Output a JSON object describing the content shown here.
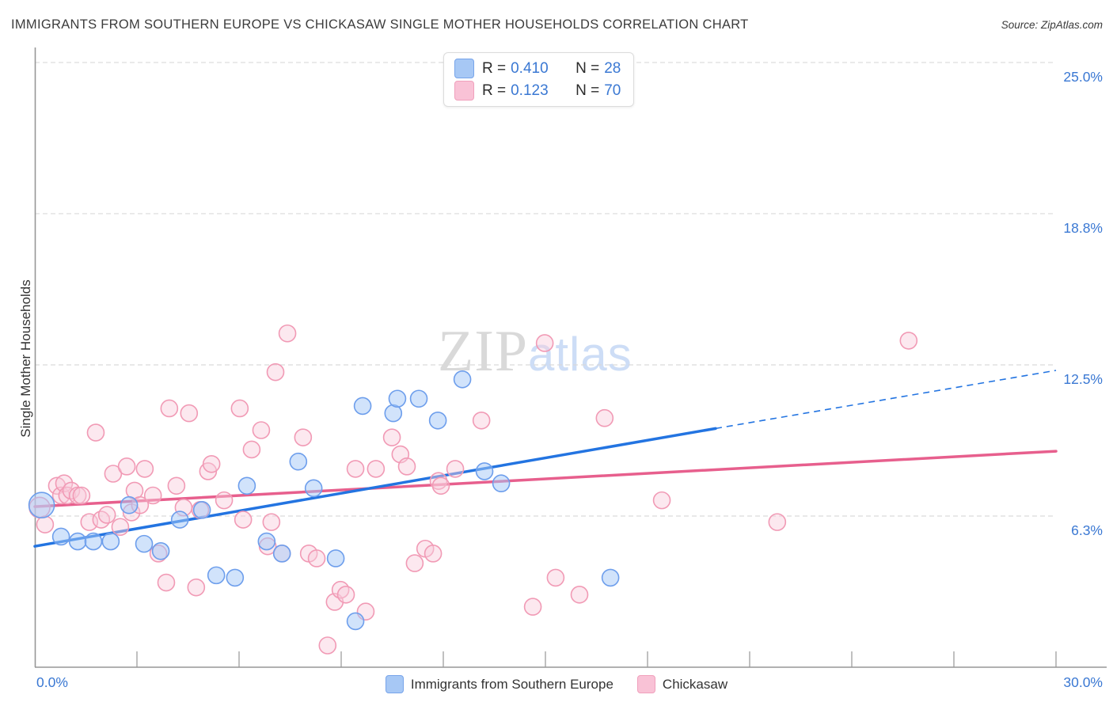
{
  "title": "IMMIGRANTS FROM SOUTHERN EUROPE VS CHICKASAW SINGLE MOTHER HOUSEHOLDS CORRELATION CHART",
  "source": "Source: ZipAtlas.com",
  "watermark": {
    "part1": "ZIP",
    "part2": "atlas"
  },
  "legend_box": {
    "rows": [
      {
        "r_label": "R =",
        "r_value": "0.410",
        "n_label": "N =",
        "n_value": "28",
        "swatch": "blue"
      },
      {
        "r_label": "R =",
        "r_value": "0.123",
        "n_label": "N =",
        "n_value": "70",
        "swatch": "pink"
      }
    ]
  },
  "y_axis": {
    "title": "Single Mother Households",
    "max": 25.62,
    "tick_values": [
      25.0,
      18.75,
      12.5,
      6.25
    ],
    "tick_labels": [
      "25.0%",
      "18.8%",
      "12.5%",
      "6.3%"
    ]
  },
  "x_axis": {
    "min": 0,
    "max": 30,
    "tick_step": 3,
    "min_label": "0.0%",
    "max_label": "30.0%"
  },
  "bottom_legend": [
    {
      "label": "Immigrants from Southern Europe",
      "swatch": "blue"
    },
    {
      "label": "Chickasaw",
      "swatch": "pink"
    }
  ],
  "colors": {
    "blue_fill": "rgba(164,199,247,0.5)",
    "blue_stroke": "#6d9eec",
    "blue_line": "#2374e1",
    "pink_fill": "rgba(249,203,220,0.45)",
    "pink_stroke": "#f19ab5",
    "pink_line": "#e75f8d",
    "axis": "#979797",
    "grid": "#d9d9d9",
    "tick_text": "#3a78d3"
  },
  "chart_data": {
    "type": "scatter",
    "x_unit": "% Immigrants from Southern Europe",
    "y_unit": "% Single Mother Households",
    "x_range": [
      0,
      30
    ],
    "y_range": [
      0,
      25.62
    ],
    "grid": "horizontal-dashed",
    "series": [
      {
        "name": "Chickasaw",
        "color_key": "pink",
        "r": 0.123,
        "n": 70,
        "trend": {
          "x0": 0,
          "y0": 6.64,
          "x1": 30,
          "y1": 8.93
        },
        "points": [
          [
            0.14,
            6.6,
            13
          ],
          [
            0.3,
            5.9
          ],
          [
            0.65,
            7.5
          ],
          [
            0.77,
            7.1
          ],
          [
            0.86,
            7.6
          ],
          [
            0.95,
            7.1
          ],
          [
            1.07,
            7.3
          ],
          [
            1.26,
            7.1
          ],
          [
            1.37,
            7.1
          ],
          [
            1.6,
            6.0
          ],
          [
            1.79,
            9.7
          ],
          [
            1.95,
            6.1
          ],
          [
            2.12,
            6.3
          ],
          [
            2.3,
            8.0
          ],
          [
            2.51,
            5.8
          ],
          [
            2.7,
            8.3
          ],
          [
            2.84,
            6.4
          ],
          [
            2.93,
            7.3
          ],
          [
            3.09,
            6.7
          ],
          [
            3.23,
            8.2
          ],
          [
            3.47,
            7.1
          ],
          [
            3.63,
            4.7
          ],
          [
            3.86,
            3.5
          ],
          [
            3.95,
            10.7
          ],
          [
            4.16,
            7.5
          ],
          [
            4.37,
            6.6
          ],
          [
            4.53,
            10.5
          ],
          [
            4.74,
            3.3
          ],
          [
            4.86,
            6.5
          ],
          [
            5.09,
            8.1
          ],
          [
            5.19,
            8.4
          ],
          [
            5.56,
            6.9
          ],
          [
            6.02,
            10.7
          ],
          [
            6.12,
            6.1
          ],
          [
            6.37,
            9.0
          ],
          [
            6.65,
            9.8
          ],
          [
            6.84,
            5.0
          ],
          [
            6.95,
            6.0
          ],
          [
            7.07,
            12.2
          ],
          [
            7.26,
            4.7
          ],
          [
            7.42,
            13.8
          ],
          [
            7.88,
            9.5
          ],
          [
            8.05,
            4.7
          ],
          [
            8.28,
            4.5
          ],
          [
            8.6,
            0.9
          ],
          [
            8.81,
            2.7
          ],
          [
            8.98,
            3.2
          ],
          [
            9.14,
            3.0
          ],
          [
            9.42,
            8.2
          ],
          [
            9.72,
            2.3
          ],
          [
            10.02,
            8.2
          ],
          [
            10.49,
            9.5
          ],
          [
            10.74,
            8.8
          ],
          [
            10.93,
            8.3
          ],
          [
            11.16,
            4.3
          ],
          [
            11.47,
            4.9
          ],
          [
            11.7,
            4.7
          ],
          [
            11.86,
            7.7
          ],
          [
            11.93,
            7.5
          ],
          [
            12.35,
            8.2
          ],
          [
            13.12,
            10.2
          ],
          [
            13.3,
            23.7
          ],
          [
            14.63,
            2.5
          ],
          [
            14.98,
            13.4
          ],
          [
            15.3,
            3.7
          ],
          [
            16.0,
            3.0
          ],
          [
            16.74,
            10.3
          ],
          [
            18.42,
            6.9
          ],
          [
            21.81,
            6.0
          ],
          [
            25.67,
            13.5
          ]
        ]
      },
      {
        "name": "Immigrants from Southern Europe",
        "color_key": "blue",
        "r": 0.41,
        "n": 28,
        "trend": {
          "x0": 0,
          "y0": 5.0,
          "x_solid_end": 20,
          "y_solid_end": 9.87,
          "x1": 30,
          "y1": 12.27
        },
        "points": [
          [
            0.2,
            6.7,
            16
          ],
          [
            0.77,
            5.4
          ],
          [
            1.26,
            5.2
          ],
          [
            1.72,
            5.2
          ],
          [
            2.23,
            5.2
          ],
          [
            2.77,
            6.7
          ],
          [
            3.21,
            5.1
          ],
          [
            3.7,
            4.8
          ],
          [
            4.26,
            6.1
          ],
          [
            4.91,
            6.5
          ],
          [
            5.33,
            3.8
          ],
          [
            5.88,
            3.7
          ],
          [
            6.23,
            7.5
          ],
          [
            6.81,
            5.2
          ],
          [
            7.26,
            4.7
          ],
          [
            7.74,
            8.5
          ],
          [
            8.19,
            7.4
          ],
          [
            8.84,
            4.5
          ],
          [
            9.42,
            1.9
          ],
          [
            9.63,
            10.8
          ],
          [
            10.53,
            10.5
          ],
          [
            10.65,
            11.1
          ],
          [
            11.28,
            11.1
          ],
          [
            11.84,
            10.2
          ],
          [
            12.56,
            11.9
          ],
          [
            13.21,
            8.1
          ],
          [
            13.7,
            7.6
          ],
          [
            16.91,
            3.7
          ]
        ]
      }
    ]
  }
}
